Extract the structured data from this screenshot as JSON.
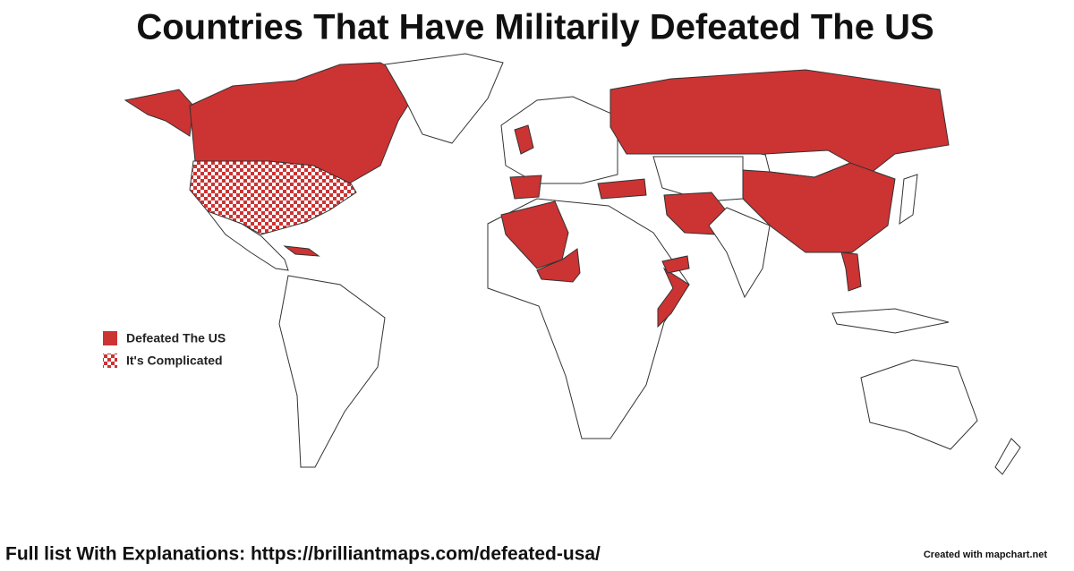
{
  "title": "Countries That Have Militarily Defeated The US",
  "legend": [
    {
      "label": "Defeated The US",
      "color": "#cc3333"
    },
    {
      "label": "It's Complicated",
      "color": "#cc3333"
    }
  ],
  "footer": {
    "link_text": "Full list With Explanations: https://brilliantmaps.com/defeated-usa/",
    "credit": "Created with mapchart.net"
  }
}
